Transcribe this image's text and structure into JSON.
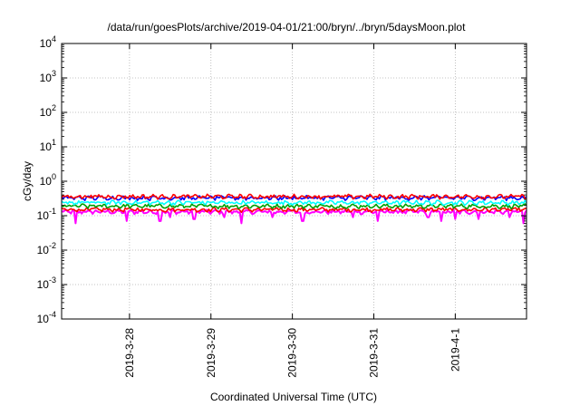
{
  "chart_data": {
    "type": "line",
    "title": "/data/run/goesPlots/archive/2019-04-01/21:00/bryn/../bryn/5daysMoon.plot",
    "xlabel": "Coordinated Universal Time (UTC)",
    "ylabel": "cGy/day",
    "xlim": [
      "2019-03-27 04:00",
      "2019-04-01 21:00"
    ],
    "ylim": [
      0.0001,
      10000
    ],
    "yscale": "log",
    "grid": true,
    "legend": "none",
    "x_ticks": [
      {
        "date": "2019-03-28",
        "label": "2019-3-28"
      },
      {
        "date": "2019-03-29",
        "label": "2019-3-29"
      },
      {
        "date": "2019-03-30",
        "label": "2019-3-30"
      },
      {
        "date": "2019-03-31",
        "label": "2019-3-31"
      },
      {
        "date": "2019-04-01",
        "label": "2019-4-1"
      }
    ],
    "y_ticks": [
      {
        "value": 0.0001,
        "base": "10",
        "exp": "-4"
      },
      {
        "value": 0.001,
        "base": "10",
        "exp": "-3"
      },
      {
        "value": 0.01,
        "base": "10",
        "exp": "-2"
      },
      {
        "value": 0.1,
        "base": "10",
        "exp": "-1"
      },
      {
        "value": 1,
        "base": "10",
        "exp": "0"
      },
      {
        "value": 10,
        "base": "10",
        "exp": "1"
      },
      {
        "value": 100,
        "base": "10",
        "exp": "2"
      },
      {
        "value": 1000,
        "base": "10",
        "exp": "3"
      },
      {
        "value": 10000,
        "base": "10",
        "exp": "4"
      }
    ],
    "series": [
      {
        "color": "#ff00ff",
        "level": 0.13,
        "dips": [
          {
            "date": "2019-03-27 08:00",
            "value": 0.06
          },
          {
            "date": "2019-03-27 23:00",
            "value": 0.07
          },
          {
            "date": "2019-03-28 09:00",
            "value": 0.07
          },
          {
            "date": "2019-03-28 12:00",
            "value": 0.09
          },
          {
            "date": "2019-03-28 19:00",
            "value": 0.08
          },
          {
            "date": "2019-03-29 04:00",
            "value": 0.09
          },
          {
            "date": "2019-03-29 09:00",
            "value": 0.06
          },
          {
            "date": "2019-03-29 18:00",
            "value": 0.09
          },
          {
            "date": "2019-03-30 03:00",
            "value": 0.07
          },
          {
            "date": "2019-03-30 18:00",
            "value": 0.09
          },
          {
            "date": "2019-03-31 01:00",
            "value": 0.07
          },
          {
            "date": "2019-03-31 16:00",
            "value": 0.09
          },
          {
            "date": "2019-03-31 20:00",
            "value": 0.07
          },
          {
            "date": "2019-04-01 00:00",
            "value": 0.08
          },
          {
            "date": "2019-04-01 07:00",
            "value": 0.08
          },
          {
            "date": "2019-04-01 16:00",
            "value": 0.09
          },
          {
            "date": "2019-04-01 20:00",
            "value": 0.06
          }
        ]
      },
      {
        "color": "#ff0000",
        "level": 0.15
      },
      {
        "color": "#00a000",
        "level": 0.19
      },
      {
        "color": "#00ffff",
        "level": 0.24
      },
      {
        "color": "#0000ff",
        "level": 0.33
      },
      {
        "color": "#ff0000",
        "level": 0.36
      }
    ]
  }
}
